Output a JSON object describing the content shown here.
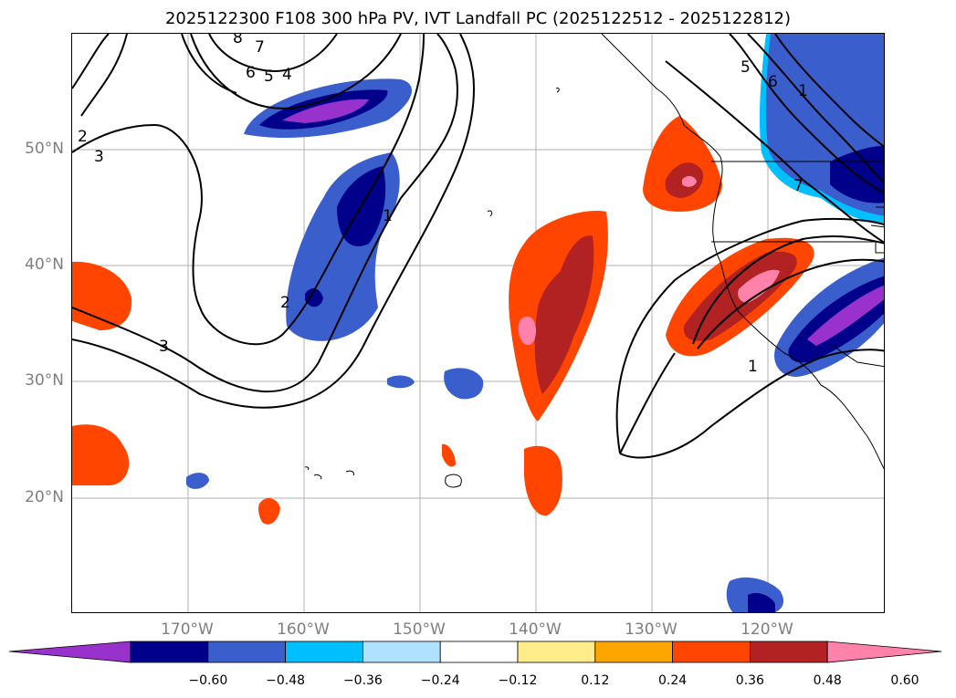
{
  "title": "2025122300 F108 300 hPa PV, IVT Landfall PC (2025122512 - 2025122812)",
  "map": {
    "lat_labels": [
      "50°N",
      "40°N",
      "30°N",
      "20°N"
    ],
    "lon_labels": [
      "170°W",
      "160°W",
      "150°W",
      "140°W",
      "130°W",
      "120°W"
    ],
    "contour_labels": [
      "8",
      "7",
      "6",
      "5",
      "4",
      "2",
      "3",
      "3",
      "2",
      "1",
      "1",
      "1",
      "5",
      "6",
      "7"
    ]
  },
  "colorbar": {
    "ticks": [
      "−0.60",
      "−0.48",
      "−0.36",
      "−0.24",
      "−0.12",
      "0.12",
      "0.24",
      "0.36",
      "0.48",
      "0.60"
    ],
    "colors": [
      "#9932cc",
      "#00008b",
      "#3a5fcd",
      "#00bfff",
      "#b0e2ff",
      "#ffffff",
      "#ffec8b",
      "#ffa500",
      "#ff4500",
      "#b22222",
      "#ff82ab"
    ]
  }
}
